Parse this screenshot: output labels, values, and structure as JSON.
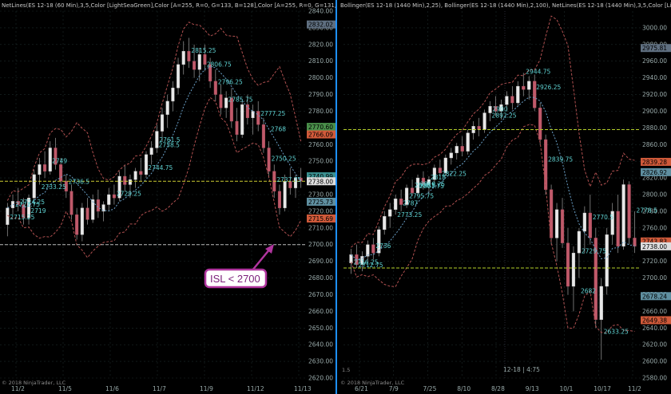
{
  "chart_data": [
    {
      "type": "candlestick",
      "header": "NetLines(ES 12-18 (60 Min),3,5,Color [LightSeaGreen],Color [A=255, R=0, G=133, B=128],Color [A=255, R=0, G=131,",
      "copyright": "© 2018 NinjaTrader, LLC",
      "ylim": [
        2620,
        2840
      ],
      "y_ticks": [
        2840,
        2830,
        2820,
        2810,
        2800,
        2790,
        2780,
        2770,
        2760,
        2750,
        2740,
        2730,
        2720,
        2710,
        2700,
        2690,
        2680,
        2670,
        2660,
        2650,
        2640,
        2630,
        2620
      ],
      "y_tick_labels": [
        "2840.00",
        "2830.00",
        "2820.00",
        "2810.00",
        "2800.00",
        "2790.00",
        "2780.00",
        "2770.00",
        "2760.00",
        "2750.00",
        "2740.00",
        "2730.00",
        "2720.00",
        "2710.00",
        "2700.00",
        "2690.00",
        "2680.00",
        "2670.00",
        "2660.00",
        "2650.00",
        "2640.00",
        "2630.00",
        "2620.00"
      ],
      "x_labels": [
        "11/2",
        "11/5",
        "11/6",
        "11/7",
        "11/9",
        "11/12",
        "11/13"
      ],
      "price_tags": [
        {
          "label": "2832.02",
          "value": 2832.02,
          "color": "#5f6f80"
        },
        {
          "label": "2770.60",
          "value": 2770.6,
          "color": "#4a8f4a"
        },
        {
          "label": "2766.09",
          "value": 2766.09,
          "color": "#d05a3a"
        },
        {
          "label": "2740.99",
          "value": 2740.99,
          "color": "#3a8f8f"
        },
        {
          "label": "2738.00",
          "value": 2738.0,
          "color": "#dddddd"
        },
        {
          "label": "2725.73",
          "value": 2725.73,
          "color": "#5f8fa0"
        },
        {
          "label": "2715.69",
          "value": 2715.69,
          "color": "#d05a3a"
        }
      ],
      "netline_labels": [
        "2815.25",
        "2806.75",
        "2796.25",
        "2785.75",
        "2777.25",
        "2768",
        "2761.5",
        "2758.5",
        "2750.25",
        "2744.75",
        "2737.75",
        "2733.25",
        "2729.25",
        "2724.25",
        "2722.75",
        "2719",
        "2715.25",
        "2749",
        "2736.5"
      ],
      "horizontal_levels": [
        {
          "value": 2738,
          "color": "#cccc33"
        },
        {
          "value": 2700,
          "color": "#bbbbbb"
        }
      ],
      "callout": {
        "text": "ISL < 2700",
        "border": "#b0359e",
        "bg": "#ffffff",
        "text_color": "#7a1f7a"
      },
      "candles": [
        {
          "o": 2712,
          "h": 2725,
          "l": 2705,
          "c": 2722
        },
        {
          "o": 2722,
          "h": 2730,
          "l": 2718,
          "c": 2726
        },
        {
          "o": 2726,
          "h": 2734,
          "l": 2720,
          "c": 2724
        },
        {
          "o": 2724,
          "h": 2728,
          "l": 2712,
          "c": 2716
        },
        {
          "o": 2716,
          "h": 2730,
          "l": 2712,
          "c": 2728
        },
        {
          "o": 2728,
          "h": 2745,
          "l": 2724,
          "c": 2742
        },
        {
          "o": 2742,
          "h": 2752,
          "l": 2736,
          "c": 2748
        },
        {
          "o": 2748,
          "h": 2756,
          "l": 2740,
          "c": 2744
        },
        {
          "o": 2744,
          "h": 2762,
          "l": 2742,
          "c": 2758
        },
        {
          "o": 2758,
          "h": 2764,
          "l": 2745,
          "c": 2748
        },
        {
          "o": 2748,
          "h": 2752,
          "l": 2735,
          "c": 2738
        },
        {
          "o": 2738,
          "h": 2742,
          "l": 2728,
          "c": 2732
        },
        {
          "o": 2732,
          "h": 2736,
          "l": 2715,
          "c": 2718
        },
        {
          "o": 2718,
          "h": 2722,
          "l": 2703,
          "c": 2706
        },
        {
          "o": 2706,
          "h": 2725,
          "l": 2702,
          "c": 2722
        },
        {
          "o": 2722,
          "h": 2728,
          "l": 2712,
          "c": 2715
        },
        {
          "o": 2715,
          "h": 2730,
          "l": 2713,
          "c": 2727
        },
        {
          "o": 2727,
          "h": 2733,
          "l": 2716,
          "c": 2720
        },
        {
          "o": 2720,
          "h": 2726,
          "l": 2714,
          "c": 2724
        },
        {
          "o": 2724,
          "h": 2734,
          "l": 2720,
          "c": 2730
        },
        {
          "o": 2730,
          "h": 2736,
          "l": 2724,
          "c": 2728
        },
        {
          "o": 2728,
          "h": 2744,
          "l": 2726,
          "c": 2741
        },
        {
          "o": 2741,
          "h": 2748,
          "l": 2732,
          "c": 2736
        },
        {
          "o": 2736,
          "h": 2742,
          "l": 2728,
          "c": 2739
        },
        {
          "o": 2739,
          "h": 2746,
          "l": 2734,
          "c": 2744
        },
        {
          "o": 2744,
          "h": 2752,
          "l": 2738,
          "c": 2742
        },
        {
          "o": 2742,
          "h": 2756,
          "l": 2740,
          "c": 2754
        },
        {
          "o": 2754,
          "h": 2762,
          "l": 2748,
          "c": 2758
        },
        {
          "o": 2758,
          "h": 2772,
          "l": 2755,
          "c": 2768
        },
        {
          "o": 2768,
          "h": 2782,
          "l": 2762,
          "c": 2778
        },
        {
          "o": 2778,
          "h": 2790,
          "l": 2770,
          "c": 2786
        },
        {
          "o": 2786,
          "h": 2798,
          "l": 2780,
          "c": 2794
        },
        {
          "o": 2794,
          "h": 2812,
          "l": 2790,
          "c": 2808
        },
        {
          "o": 2808,
          "h": 2822,
          "l": 2802,
          "c": 2816
        },
        {
          "o": 2816,
          "h": 2824,
          "l": 2806,
          "c": 2810
        },
        {
          "o": 2810,
          "h": 2820,
          "l": 2800,
          "c": 2805
        },
        {
          "o": 2805,
          "h": 2818,
          "l": 2798,
          "c": 2814
        },
        {
          "o": 2814,
          "h": 2820,
          "l": 2804,
          "c": 2808
        },
        {
          "o": 2808,
          "h": 2812,
          "l": 2794,
          "c": 2798
        },
        {
          "o": 2798,
          "h": 2805,
          "l": 2786,
          "c": 2790
        },
        {
          "o": 2790,
          "h": 2796,
          "l": 2778,
          "c": 2782
        },
        {
          "o": 2782,
          "h": 2792,
          "l": 2776,
          "c": 2788
        },
        {
          "o": 2788,
          "h": 2794,
          "l": 2770,
          "c": 2774
        },
        {
          "o": 2774,
          "h": 2782,
          "l": 2762,
          "c": 2766
        },
        {
          "o": 2766,
          "h": 2786,
          "l": 2764,
          "c": 2784
        },
        {
          "o": 2784,
          "h": 2790,
          "l": 2772,
          "c": 2776
        },
        {
          "o": 2776,
          "h": 2784,
          "l": 2766,
          "c": 2780
        },
        {
          "o": 2780,
          "h": 2786,
          "l": 2768,
          "c": 2772
        },
        {
          "o": 2772,
          "h": 2776,
          "l": 2755,
          "c": 2758
        },
        {
          "o": 2758,
          "h": 2762,
          "l": 2740,
          "c": 2744
        },
        {
          "o": 2744,
          "h": 2748,
          "l": 2728,
          "c": 2732
        },
        {
          "o": 2732,
          "h": 2736,
          "l": 2718,
          "c": 2722
        },
        {
          "o": 2722,
          "h": 2742,
          "l": 2720,
          "c": 2738
        },
        {
          "o": 2738,
          "h": 2746,
          "l": 2730,
          "c": 2734
        },
        {
          "o": 2734,
          "h": 2742,
          "l": 2728,
          "c": 2740
        },
        {
          "o": 2740,
          "h": 2746,
          "l": 2734,
          "c": 2738
        }
      ],
      "bollinger": {
        "upper_color": "#b05050",
        "lower_color": "#b05050",
        "mid_color": "#6aa0c8"
      }
    },
    {
      "type": "candlestick",
      "header": "Bollinger(ES 12-18 (1440 Min),2,25), Bollinger(ES 12-18 (1440 Min),2,100), NetLines(ES 12-18 (1440 Min),3,5,Color [Li",
      "copyright": "© 2018 NinjaTrader, LLC",
      "ylim": [
        2580,
        3020
      ],
      "y_ticks": [
        3000,
        2980,
        2960,
        2940,
        2920,
        2900,
        2880,
        2860,
        2840,
        2820,
        2800,
        2780,
        2760,
        2740,
        2720,
        2700,
        2680,
        2660,
        2640,
        2620,
        2600,
        2580
      ],
      "y_tick_labels": [
        "3000.00",
        "2980.00",
        "2960.00",
        "2940.00",
        "2920.00",
        "2900.00",
        "2880.00",
        "2860.00",
        "2840.00",
        "2820.00",
        "2800.00",
        "2780.00",
        "2760.00",
        "2740.00",
        "2720.00",
        "2700.00",
        "2680.00",
        "2660.00",
        "2640.00",
        "2620.00",
        "2600.00",
        "2580.00"
      ],
      "x_labels": [
        "6/21",
        "7/9",
        "7/25",
        "8/10",
        "8/28",
        "9/13",
        "10/1",
        "10/17",
        "11/2"
      ],
      "cursor_label": "12-18 | 4:75",
      "corner_label": "1.5",
      "price_tags": [
        {
          "label": "2975.81",
          "value": 2975.81,
          "color": "#5f6f80"
        },
        {
          "label": "2839.28",
          "value": 2839.28,
          "color": "#d05a3a"
        },
        {
          "label": "2826.92",
          "value": 2826.92,
          "color": "#5f8fa0"
        },
        {
          "label": "2743.83",
          "value": 2743.83,
          "color": "#d05a3a"
        },
        {
          "label": "2738.00",
          "value": 2738.0,
          "color": "#dddddd"
        },
        {
          "label": "2678.24",
          "value": 2678.24,
          "color": "#5f8fa0"
        },
        {
          "label": "2649.38",
          "value": 2649.38,
          "color": "#d05a3a"
        }
      ],
      "netline_labels": [
        "2944.75",
        "2926.25",
        "2900",
        "2892.25",
        "2839.75",
        "2822.25",
        "2810.25",
        "2807.75",
        "2795.75",
        "2778.5",
        "2770.5",
        "2773.25",
        "2736",
        "2712.75",
        "2729.75",
        "2682",
        "2633.25",
        "2818",
        "2808.5",
        "2787",
        "2716.25"
      ],
      "horizontal_levels": [
        {
          "value": 2878,
          "color": "#b5cf2a"
        },
        {
          "value": 2712,
          "color": "#b5cf2a"
        }
      ],
      "candles": [
        {
          "o": 2718,
          "h": 2735,
          "l": 2705,
          "c": 2728
        },
        {
          "o": 2728,
          "h": 2740,
          "l": 2712,
          "c": 2716
        },
        {
          "o": 2716,
          "h": 2732,
          "l": 2708,
          "c": 2726
        },
        {
          "o": 2726,
          "h": 2745,
          "l": 2718,
          "c": 2740
        },
        {
          "o": 2740,
          "h": 2748,
          "l": 2722,
          "c": 2730
        },
        {
          "o": 2730,
          "h": 2762,
          "l": 2726,
          "c": 2758
        },
        {
          "o": 2758,
          "h": 2780,
          "l": 2752,
          "c": 2774
        },
        {
          "o": 2774,
          "h": 2790,
          "l": 2760,
          "c": 2782
        },
        {
          "o": 2782,
          "h": 2800,
          "l": 2776,
          "c": 2795
        },
        {
          "o": 2795,
          "h": 2806,
          "l": 2780,
          "c": 2788
        },
        {
          "o": 2788,
          "h": 2812,
          "l": 2784,
          "c": 2808
        },
        {
          "o": 2808,
          "h": 2818,
          "l": 2798,
          "c": 2802
        },
        {
          "o": 2802,
          "h": 2824,
          "l": 2798,
          "c": 2820
        },
        {
          "o": 2820,
          "h": 2828,
          "l": 2806,
          "c": 2812
        },
        {
          "o": 2812,
          "h": 2822,
          "l": 2800,
          "c": 2818
        },
        {
          "o": 2818,
          "h": 2836,
          "l": 2814,
          "c": 2832
        },
        {
          "o": 2832,
          "h": 2842,
          "l": 2822,
          "c": 2826
        },
        {
          "o": 2826,
          "h": 2848,
          "l": 2822,
          "c": 2844
        },
        {
          "o": 2844,
          "h": 2856,
          "l": 2836,
          "c": 2850
        },
        {
          "o": 2850,
          "h": 2862,
          "l": 2842,
          "c": 2858
        },
        {
          "o": 2858,
          "h": 2870,
          "l": 2846,
          "c": 2852
        },
        {
          "o": 2852,
          "h": 2878,
          "l": 2848,
          "c": 2874
        },
        {
          "o": 2874,
          "h": 2888,
          "l": 2866,
          "c": 2882
        },
        {
          "o": 2882,
          "h": 2892,
          "l": 2870,
          "c": 2878
        },
        {
          "o": 2878,
          "h": 2902,
          "l": 2874,
          "c": 2898
        },
        {
          "o": 2898,
          "h": 2912,
          "l": 2888,
          "c": 2906
        },
        {
          "o": 2906,
          "h": 2918,
          "l": 2894,
          "c": 2900
        },
        {
          "o": 2900,
          "h": 2914,
          "l": 2890,
          "c": 2908
        },
        {
          "o": 2908,
          "h": 2924,
          "l": 2900,
          "c": 2918
        },
        {
          "o": 2918,
          "h": 2930,
          "l": 2902,
          "c": 2910
        },
        {
          "o": 2910,
          "h": 2936,
          "l": 2906,
          "c": 2930
        },
        {
          "o": 2930,
          "h": 2946,
          "l": 2918,
          "c": 2926
        },
        {
          "o": 2926,
          "h": 2942,
          "l": 2914,
          "c": 2936
        },
        {
          "o": 2936,
          "h": 2944,
          "l": 2900,
          "c": 2904
        },
        {
          "o": 2904,
          "h": 2910,
          "l": 2860,
          "c": 2866
        },
        {
          "o": 2866,
          "h": 2872,
          "l": 2800,
          "c": 2806
        },
        {
          "o": 2806,
          "h": 2812,
          "l": 2740,
          "c": 2748
        },
        {
          "o": 2748,
          "h": 2790,
          "l": 2720,
          "c": 2782
        },
        {
          "o": 2782,
          "h": 2796,
          "l": 2736,
          "c": 2742
        },
        {
          "o": 2742,
          "h": 2760,
          "l": 2680,
          "c": 2690
        },
        {
          "o": 2690,
          "h": 2738,
          "l": 2660,
          "c": 2730
        },
        {
          "o": 2730,
          "h": 2760,
          "l": 2700,
          "c": 2756
        },
        {
          "o": 2756,
          "h": 2786,
          "l": 2730,
          "c": 2778
        },
        {
          "o": 2778,
          "h": 2800,
          "l": 2740,
          "c": 2748
        },
        {
          "o": 2748,
          "h": 2760,
          "l": 2640,
          "c": 2650
        },
        {
          "o": 2650,
          "h": 2700,
          "l": 2602,
          "c": 2690
        },
        {
          "o": 2690,
          "h": 2760,
          "l": 2680,
          "c": 2752
        },
        {
          "o": 2752,
          "h": 2790,
          "l": 2740,
          "c": 2780
        },
        {
          "o": 2780,
          "h": 2800,
          "l": 2730,
          "c": 2738
        },
        {
          "o": 2738,
          "h": 2818,
          "l": 2734,
          "c": 2812
        },
        {
          "o": 2812,
          "h": 2816,
          "l": 2740,
          "c": 2748
        },
        {
          "o": 2748,
          "h": 2780,
          "l": 2730,
          "c": 2738
        }
      ],
      "bollinger": {
        "upper_color": "#b05050",
        "lower_color": "#b05050",
        "mid_color": "#6aa0c8"
      }
    }
  ]
}
